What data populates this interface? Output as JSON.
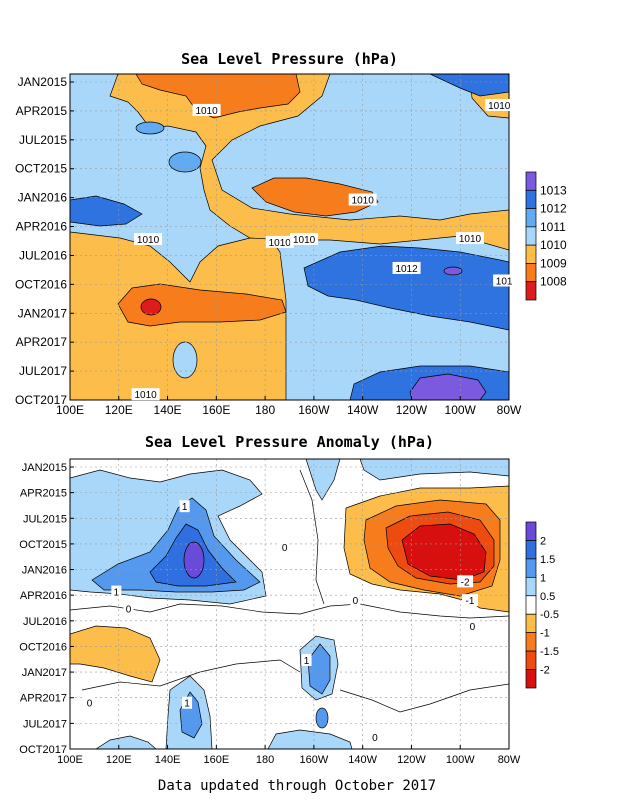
{
  "footer": "Data updated through October 2017",
  "chart_data": [
    {
      "type": "heatmap",
      "title": "Sea Level Pressure (hPa)",
      "x_ticks": [
        "100E",
        "120E",
        "140E",
        "160E",
        "180",
        "160W",
        "140W",
        "120W",
        "100W",
        "80W"
      ],
      "y_ticks": [
        "JAN2015",
        "APR2015",
        "JUL2015",
        "OCT2015",
        "JAN2016",
        "APR2016",
        "JUL2016",
        "OCT2016",
        "JAN2017",
        "APR2017",
        "JUL2017",
        "OCT2017"
      ],
      "colorbar": {
        "labels": [
          "1013",
          "1012",
          "1011",
          "1010",
          "1009",
          "1008"
        ],
        "colors": [
          "#7b5ae0",
          "#2f73e0",
          "#62aaf2",
          "#a9d7fa",
          "#fdbd4a",
          "#f77d1c",
          "#dd1c1c"
        ]
      },
      "contour_labels": [
        {
          "text": "1010",
          "lon": 156,
          "month": 3
        },
        {
          "text": "1010",
          "lon": -84,
          "month": 2.5
        },
        {
          "text": "1010",
          "lon": -140,
          "month": 12.3
        },
        {
          "text": "1010",
          "lon": 132,
          "month": 16.4
        },
        {
          "text": "1010",
          "lon": -174,
          "month": 16.7
        },
        {
          "text": "1010",
          "lon": -164,
          "month": 16.4
        },
        {
          "text": "1010",
          "lon": -96,
          "month": 16.3
        },
        {
          "text": "1012",
          "lon": -122,
          "month": 19.4
        },
        {
          "text": "101",
          "lon": -82,
          "month": 20.7
        },
        {
          "text": "1010",
          "lon": 131,
          "month": 32.5
        }
      ]
    },
    {
      "type": "heatmap",
      "title": "Sea Level Pressure Anomaly (hPa)",
      "x_ticks": [
        "100E",
        "120E",
        "140E",
        "160E",
        "180",
        "160W",
        "140W",
        "120W",
        "100W",
        "80W"
      ],
      "y_ticks": [
        "JAN2015",
        "APR2015",
        "JUL2015",
        "OCT2015",
        "JAN2016",
        "APR2016",
        "JUL2016",
        "OCT2016",
        "JAN2017",
        "APR2017",
        "JUL2017",
        "OCT2017"
      ],
      "colorbar": {
        "labels": [
          "2",
          "1.5",
          "1",
          "0.5",
          "-0.5",
          "-1",
          "-1.5",
          "-2"
        ],
        "colors": [
          "#6a4ad8",
          "#2f6fdf",
          "#5599ee",
          "#a9d7fa",
          "#ffffff",
          "#fdbd4a",
          "#f77d1c",
          "#ee4b11",
          "#d80f0f"
        ]
      },
      "contour_labels": [
        {
          "text": "1",
          "lon": 147,
          "month": 4.7
        },
        {
          "text": "1",
          "lon": 119,
          "month": 14.7
        },
        {
          "text": "-2",
          "lon": -98,
          "month": 13.5
        },
        {
          "text": "-1",
          "lon": -96,
          "month": 15.7
        },
        {
          "text": "0",
          "lon": -172,
          "month": 9.5
        },
        {
          "text": "0",
          "lon": -143,
          "month": 15.7
        },
        {
          "text": "0",
          "lon": -95,
          "month": 18.7
        },
        {
          "text": "0",
          "lon": 124,
          "month": 16.7
        },
        {
          "text": "1",
          "lon": -163,
          "month": 22.7
        },
        {
          "text": "0",
          "lon": 108,
          "month": 27.7
        },
        {
          "text": "1",
          "lon": 148,
          "month": 27.7
        },
        {
          "text": "0",
          "lon": -135,
          "month": 31.7
        }
      ]
    }
  ]
}
